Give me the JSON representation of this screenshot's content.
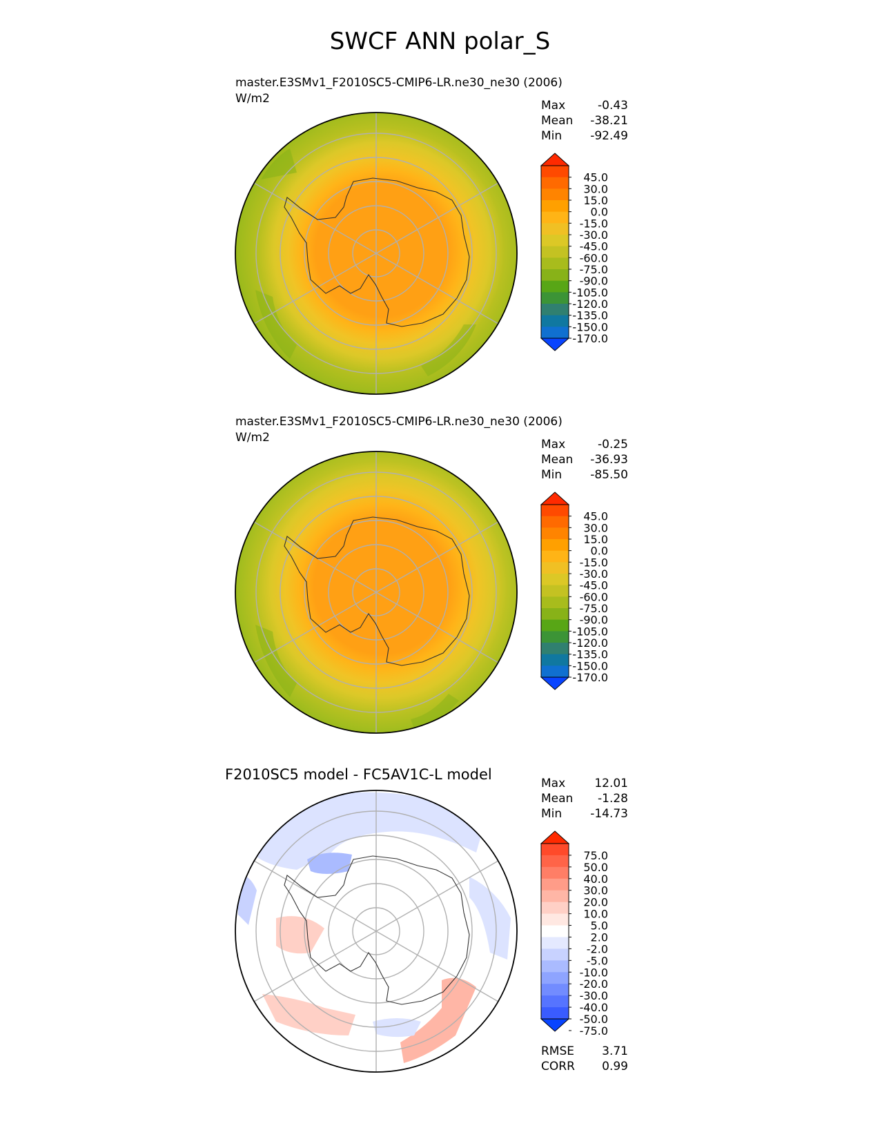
{
  "main_title": "SWCF ANN polar_S",
  "panels": [
    {
      "title": "master.E3SMv1_F2010SC5-CMIP6-LR.ne30_ne30 (2006)",
      "units": "W/m2",
      "stats": [
        {
          "label": "Max",
          "value": "-0.43"
        },
        {
          "label": "Mean",
          "value": "-38.21"
        },
        {
          "label": "Min",
          "value": "-92.49"
        }
      ]
    },
    {
      "title": "master.E3SMv1_F2010SC5-CMIP6-LR.ne30_ne30 (2006)",
      "units": "W/m2",
      "stats": [
        {
          "label": "Max",
          "value": "-0.25"
        },
        {
          "label": "Mean",
          "value": "-36.93"
        },
        {
          "label": "Min",
          "value": "-85.50"
        }
      ]
    },
    {
      "title": "F2010SC5 model - FC5AV1C-L model",
      "units": "",
      "stats": [
        {
          "label": "Max",
          "value": "12.01"
        },
        {
          "label": "Mean",
          "value": "-1.28"
        },
        {
          "label": "Min",
          "value": "-14.73"
        }
      ],
      "metrics": [
        {
          "label": "RMSE",
          "value": "3.71"
        },
        {
          "label": "CORR",
          "value": "0.99"
        }
      ]
    }
  ],
  "colorbars": {
    "field": {
      "ticks": [
        "45.0",
        "30.0",
        "15.0",
        "0.0",
        "-15.0",
        "-30.0",
        "-45.0",
        "-60.0",
        "-75.0",
        "-90.0",
        "-105.0",
        "-120.0",
        "-135.0",
        "-150.0",
        "-170.0"
      ],
      "colors": [
        "#ff2a00",
        "#ff4a00",
        "#ff6a00",
        "#ff8400",
        "#ffa000",
        "#ffb416",
        "#f0c024",
        "#dcc826",
        "#c4c222",
        "#a8bc1c",
        "#88b218",
        "#58a616",
        "#3c9436",
        "#308070",
        "#1078a0",
        "#1070d0",
        "#0844ff"
      ]
    },
    "diff": {
      "ticks": [
        "75.0",
        "50.0",
        "40.0",
        "30.0",
        "20.0",
        "10.0",
        "5.0",
        "2.0",
        "-2.0",
        "-5.0",
        "-10.0",
        "-20.0",
        "-30.0",
        "-40.0",
        "-50.0",
        "-75.0"
      ],
      "colors": [
        "#ff2a00",
        "#ff4a2a",
        "#ff6448",
        "#ff7e66",
        "#ff9c88",
        "#ffb6a6",
        "#ffd0c6",
        "#ffe8e2",
        "#ffffff",
        "#e4e9ff",
        "#c8d2ff",
        "#aabbff",
        "#8ea4ff",
        "#728cff",
        "#5674ff",
        "#3a5cff",
        "#0844ff"
      ]
    }
  },
  "chart_data": [
    {
      "type": "heatmap",
      "projection": "south polar stereographic",
      "title": "master.E3SMv1_F2010SC5-CMIP6-LR.ne30_ne30 (2006)",
      "units": "W/m2",
      "variable": "SWCF",
      "season": "ANN",
      "max": -0.43,
      "mean": -38.21,
      "min": -92.49,
      "colorbar_levels": [
        -170,
        -150,
        -135,
        -120,
        -105,
        -90,
        -75,
        -60,
        -45,
        -30,
        -15,
        0,
        15,
        30,
        45
      ],
      "colorbar_extend": "both"
    },
    {
      "type": "heatmap",
      "projection": "south polar stereographic",
      "title": "master.E3SMv1_F2010SC5-CMIP6-LR.ne30_ne30 (2006)",
      "units": "W/m2",
      "variable": "SWCF",
      "season": "ANN",
      "max": -0.25,
      "mean": -36.93,
      "min": -85.5,
      "colorbar_levels": [
        -170,
        -150,
        -135,
        -120,
        -105,
        -90,
        -75,
        -60,
        -45,
        -30,
        -15,
        0,
        15,
        30,
        45
      ],
      "colorbar_extend": "both"
    },
    {
      "type": "heatmap",
      "projection": "south polar stereographic",
      "title": "F2010SC5 model - FC5AV1C-L model",
      "max": 12.01,
      "mean": -1.28,
      "min": -14.73,
      "rmse": 3.71,
      "corr": 0.99,
      "colorbar_levels": [
        -75,
        -50,
        -40,
        -30,
        -20,
        -10,
        -5,
        -2,
        2,
        5,
        10,
        20,
        30,
        40,
        50,
        75
      ],
      "colorbar_extend": "both"
    }
  ]
}
